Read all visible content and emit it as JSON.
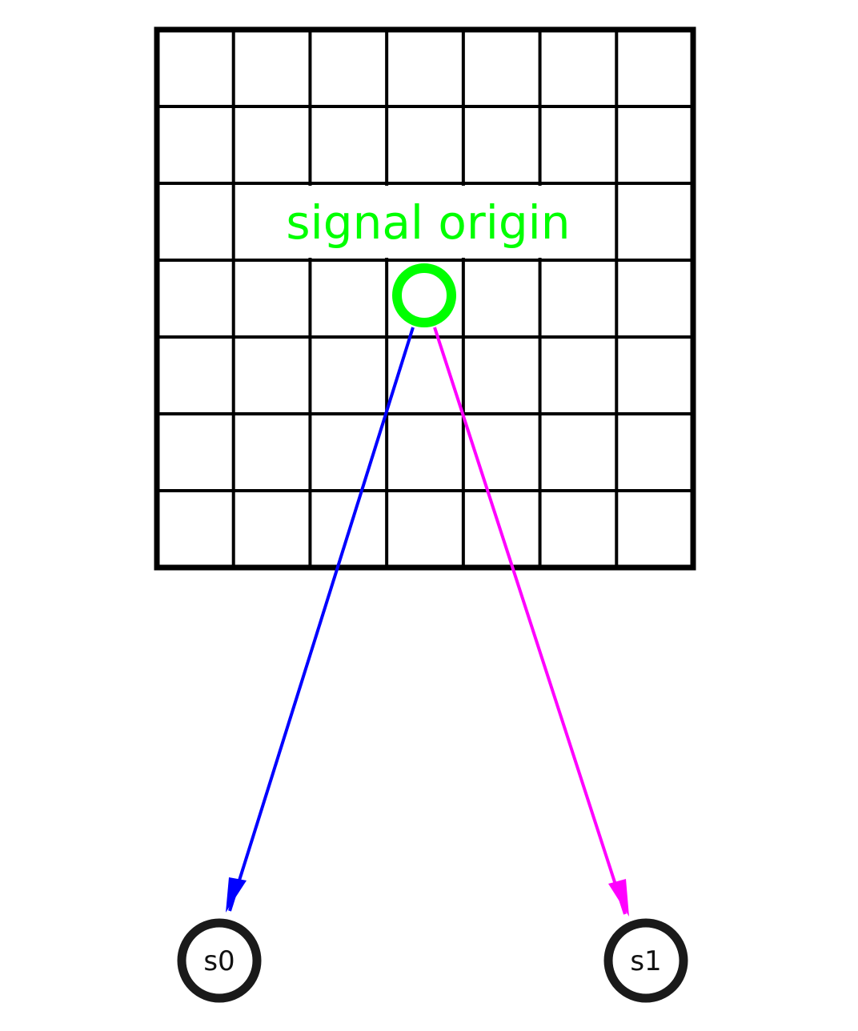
{
  "diagram": {
    "grid": {
      "rows": 7,
      "cols": 7,
      "line_color": "#000000"
    },
    "origin": {
      "label": "signal origin",
      "color": "#00ff00",
      "cell": {
        "row": 3,
        "col": 3
      }
    },
    "nodes": [
      {
        "id": "s0",
        "label": "s0",
        "color": "#1a1a1a"
      },
      {
        "id": "s1",
        "label": "s1",
        "color": "#1a1a1a"
      }
    ],
    "edges": [
      {
        "from": "origin",
        "to": "s0",
        "color": "#0000ff"
      },
      {
        "from": "origin",
        "to": "s1",
        "color": "#ff00ff"
      }
    ]
  }
}
